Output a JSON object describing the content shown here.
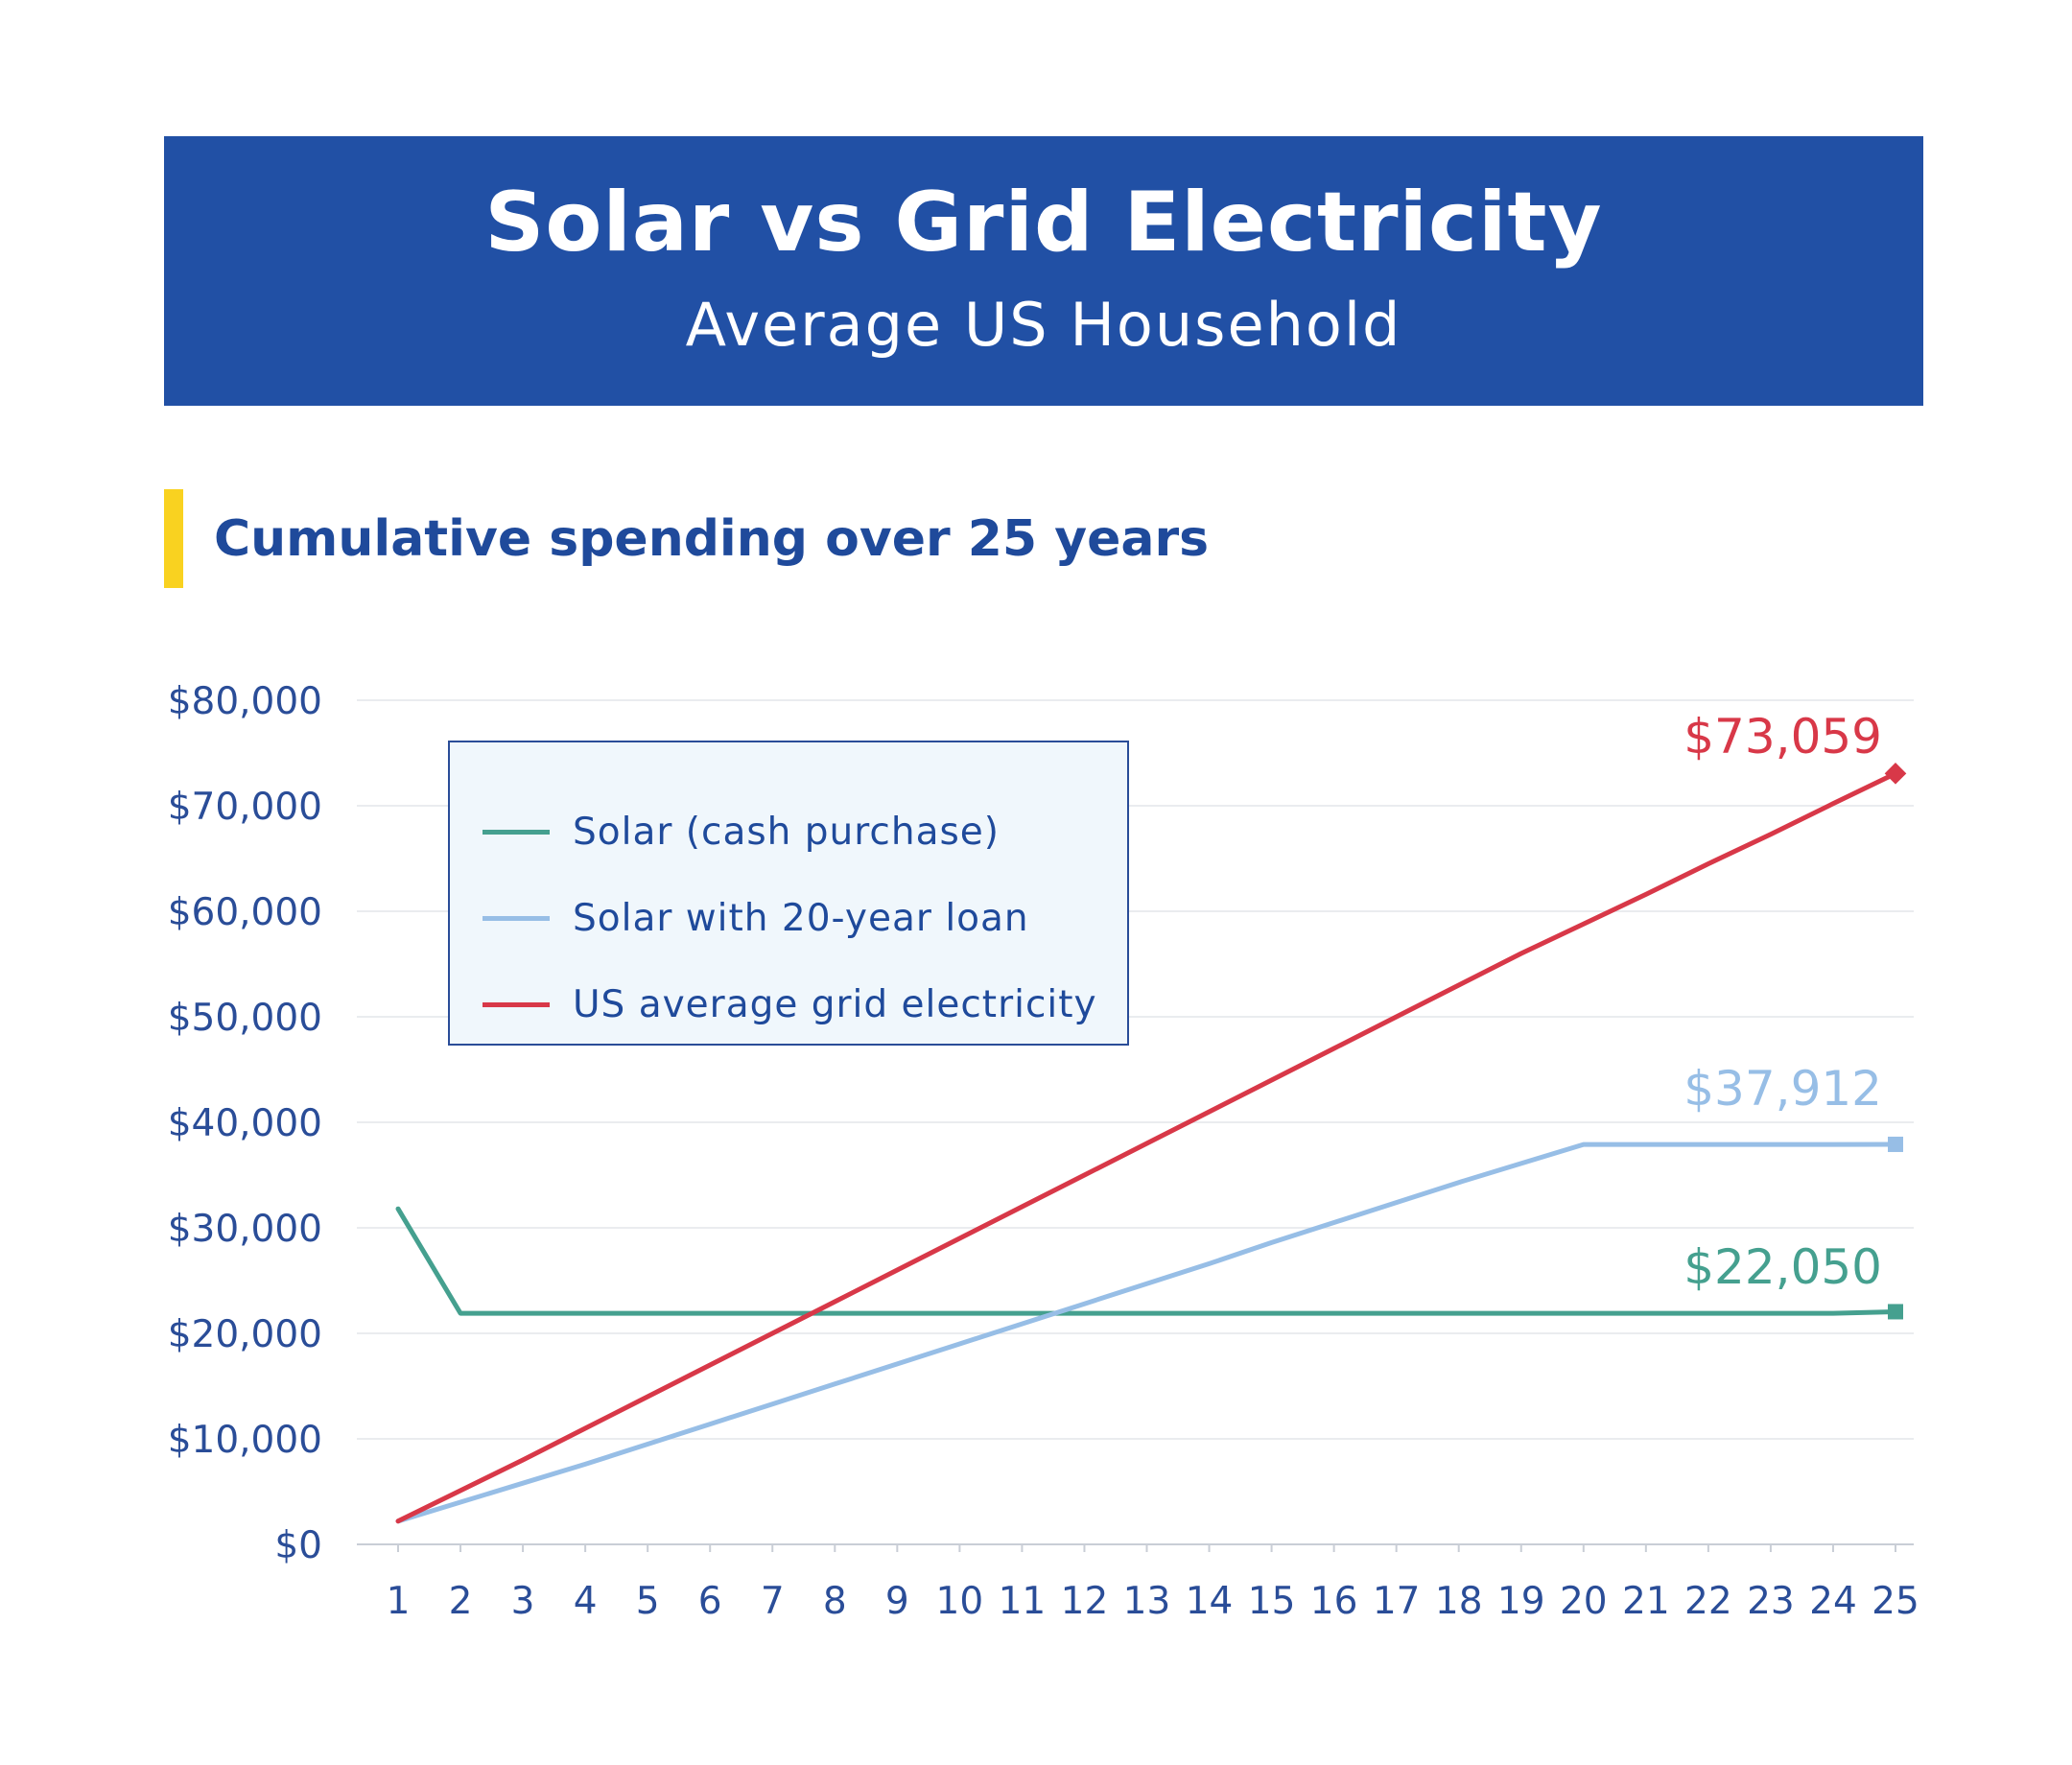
{
  "header": {
    "title": "Solar vs Grid Electricity",
    "subtitle": "Average US Household"
  },
  "section": {
    "title": "Cumulative spending over 25 years"
  },
  "colors": {
    "banner": "#2150a5",
    "accent_bar": "#f9d220",
    "axis_text": "#2a4d98",
    "solar_cash": "#45a08f",
    "solar_loan": "#97bee6",
    "grid": "#d83848"
  },
  "legend": {
    "items": [
      {
        "label": "Solar (cash purchase)",
        "color": "#45a08f"
      },
      {
        "label": "Solar with 20-year loan",
        "color": "#97bee6"
      },
      {
        "label": "US average grid electricity",
        "color": "#d83848"
      }
    ]
  },
  "chart_data": {
    "type": "line",
    "title": "Cumulative spending over 25 years",
    "xlabel": "",
    "ylabel": "",
    "x": [
      1,
      2,
      3,
      4,
      5,
      6,
      7,
      8,
      9,
      10,
      11,
      12,
      13,
      14,
      15,
      16,
      17,
      18,
      19,
      20,
      21,
      22,
      23,
      24,
      25
    ],
    "x_tick_labels": [
      "1",
      "2",
      "3",
      "4",
      "5",
      "6",
      "7",
      "8",
      "9",
      "10",
      "11",
      "12",
      "13",
      "14",
      "15",
      "16",
      "17",
      "18",
      "19",
      "20",
      "21",
      "22",
      "23",
      "24",
      "25"
    ],
    "y_tick_labels": [
      "$0",
      "$10,000",
      "$20,000",
      "$30,000",
      "$40,000",
      "$50,000",
      "$60,000",
      "$70,000",
      "$80,000"
    ],
    "y_ticks": [
      0,
      10000,
      20000,
      30000,
      40000,
      50000,
      60000,
      70000,
      80000
    ],
    "ylim": [
      0,
      80000
    ],
    "grid": true,
    "legend_position": "top-left",
    "series": [
      {
        "name": "Solar (cash purchase)",
        "color": "#45a08f",
        "values": [
          31800,
          21900,
          21900,
          21900,
          21900,
          21900,
          21900,
          21900,
          21900,
          21900,
          21900,
          21900,
          21900,
          21900,
          21900,
          21900,
          21900,
          21900,
          21900,
          21900,
          21900,
          21900,
          21900,
          21900,
          22050
        ],
        "end_label": "$22,050"
      },
      {
        "name": "Solar with 20-year loan",
        "color": "#97bee6",
        "values": [
          2200,
          4000,
          5800,
          7600,
          9500,
          11400,
          13300,
          15200,
          17100,
          19000,
          20900,
          22800,
          24700,
          26600,
          28600,
          30500,
          32400,
          34300,
          36100,
          37900,
          37900,
          37900,
          37900,
          37900,
          37912
        ],
        "end_label": "$37,912"
      },
      {
        "name": "US average grid electricity",
        "color": "#d83848",
        "values": [
          2200,
          5100,
          8000,
          11000,
          14000,
          17000,
          20000,
          23000,
          26000,
          29000,
          32000,
          35000,
          38000,
          41000,
          44000,
          47000,
          50000,
          53000,
          56000,
          58800,
          61600,
          64500,
          67300,
          70200,
          73059
        ],
        "end_label": "$73,059"
      }
    ]
  }
}
